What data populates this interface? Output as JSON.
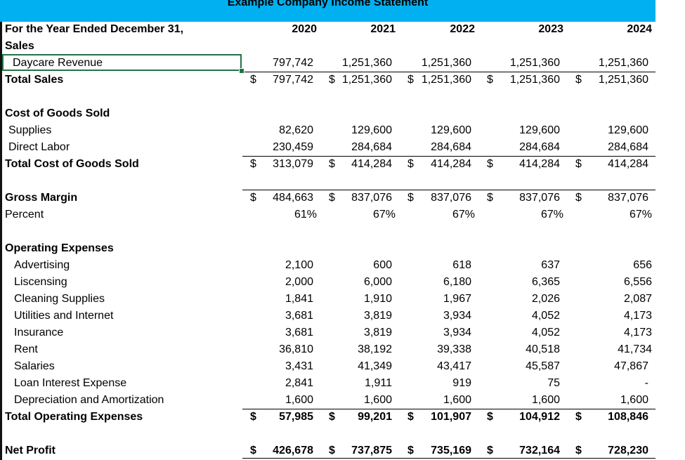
{
  "title": "Example Company Income Statement",
  "header": {
    "label": "For the Year Ended December 31,",
    "years": [
      "2020",
      "2021",
      "2022",
      "2023",
      "2024"
    ]
  },
  "sales": {
    "heading": "Sales",
    "revenue": {
      "label": "Daycare Revenue",
      "values": [
        "797,742",
        "1,251,360",
        "1,251,360",
        "1,251,360",
        "1,251,360"
      ]
    },
    "total": {
      "label": "Total Sales",
      "values": [
        "797,742",
        "1,251,360",
        "1,251,360",
        "1,251,360",
        "1,251,360"
      ]
    }
  },
  "cogs": {
    "heading": "Cost of Goods Sold",
    "supplies": {
      "label": "Supplies",
      "values": [
        "82,620",
        "129,600",
        "129,600",
        "129,600",
        "129,600"
      ]
    },
    "labor": {
      "label": "Direct Labor",
      "values": [
        "230,459",
        "284,684",
        "284,684",
        "284,684",
        "284,684"
      ]
    },
    "total": {
      "label": "Total Cost of Goods Sold",
      "values": [
        "313,079",
        "414,284",
        "414,284",
        "414,284",
        "414,284"
      ]
    }
  },
  "gross": {
    "label": "Gross Margin",
    "values": [
      "484,663",
      "837,076",
      "837,076",
      "837,076",
      "837,076"
    ],
    "percent_label": "Percent",
    "percent": [
      "61%",
      "67%",
      "67%",
      "67%",
      "67%"
    ]
  },
  "opex": {
    "heading": "Operating Expenses",
    "items": [
      {
        "label": "Advertising",
        "values": [
          "2,100",
          "600",
          "618",
          "637",
          "656"
        ]
      },
      {
        "label": "Liscensing",
        "values": [
          "2,000",
          "6,000",
          "6,180",
          "6,365",
          "6,556"
        ]
      },
      {
        "label": "Cleaning Supplies",
        "values": [
          "1,841",
          "1,910",
          "1,967",
          "2,026",
          "2,087"
        ]
      },
      {
        "label": "Utilities and Internet",
        "values": [
          "3,681",
          "3,819",
          "3,934",
          "4,052",
          "4,173"
        ]
      },
      {
        "label": "Insurance",
        "values": [
          "3,681",
          "3,819",
          "3,934",
          "4,052",
          "4,173"
        ]
      },
      {
        "label": "Rent",
        "values": [
          "36,810",
          "38,192",
          "39,338",
          "40,518",
          "41,734"
        ]
      },
      {
        "label": "Salaries",
        "values": [
          "3,431",
          "41,349",
          "43,417",
          "45,587",
          "47,867"
        ]
      },
      {
        "label": "Loan Interest Expense",
        "values": [
          "2,841",
          "1,911",
          "919",
          "75",
          "-"
        ]
      },
      {
        "label": "Depreciation and Amortization",
        "values": [
          "1,600",
          "1,600",
          "1,600",
          "1,600",
          "1,600"
        ]
      }
    ],
    "total": {
      "label": "Total Operating Expenses",
      "values": [
        "57,985",
        "99,201",
        "101,907",
        "104,912",
        "108,846"
      ]
    }
  },
  "net": {
    "label": "Net Profit",
    "values": [
      "426,678",
      "737,875",
      "735,169",
      "732,164",
      "728,230"
    ]
  },
  "currency": "$"
}
